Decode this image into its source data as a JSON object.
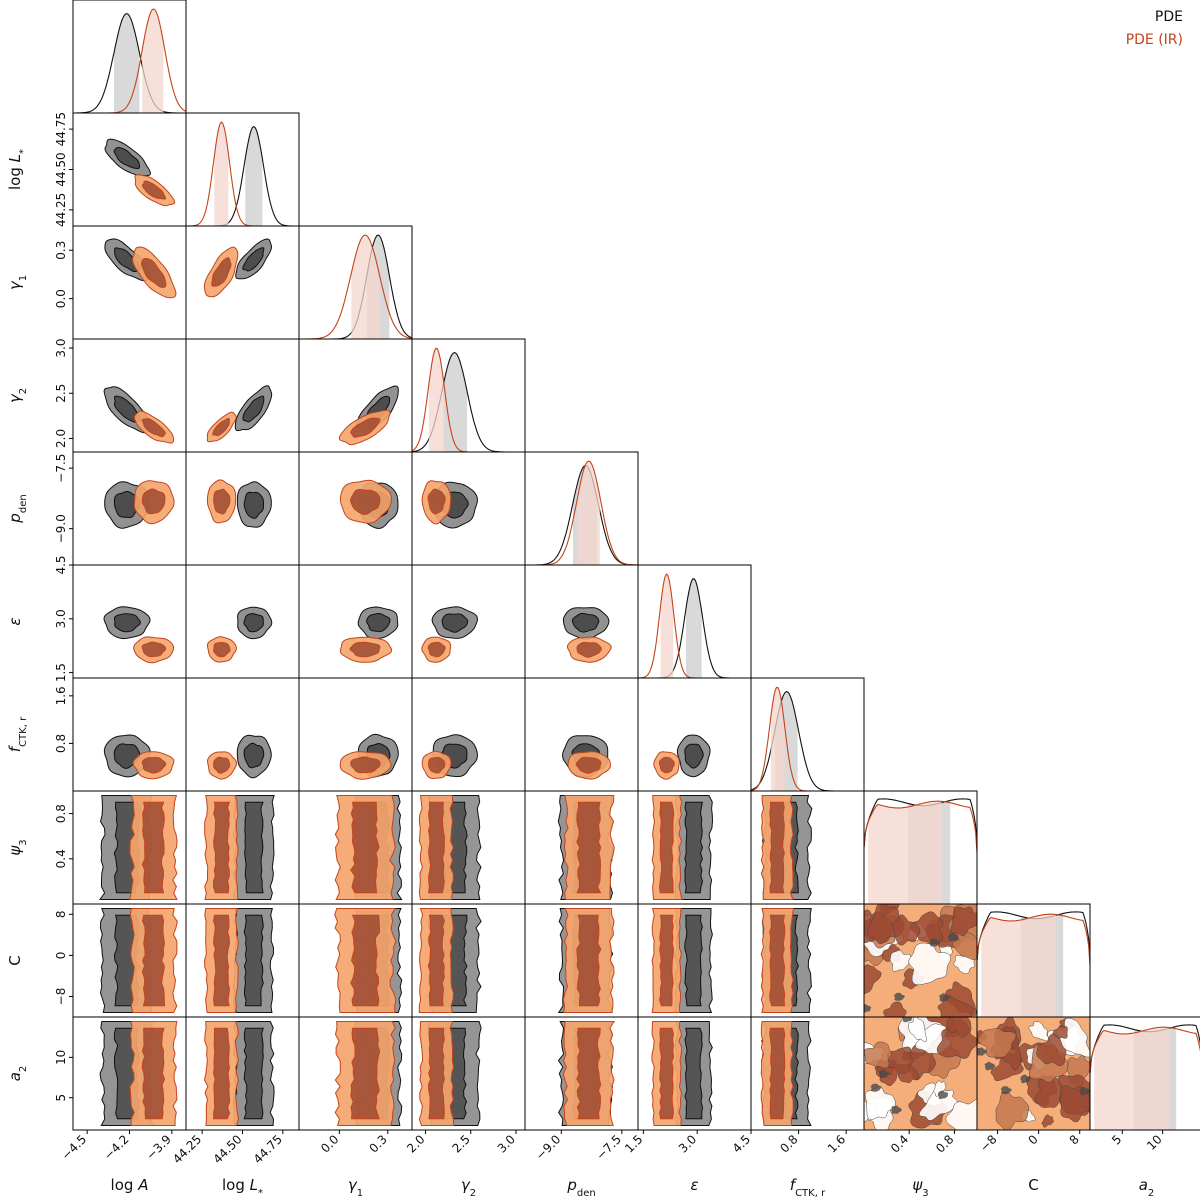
{
  "legend": [
    {
      "label": "PDE",
      "color": "#111111"
    },
    {
      "label": "PDE (IR)",
      "color": "#c4441b"
    }
  ],
  "chart_data": {
    "type": "corner",
    "legend_position": "top-right",
    "colors": {
      "PDE_line": "#111111",
      "PDE_fill_outer": "#8c8c8c",
      "PDE_fill_inner": "#4a4a4a",
      "PDE_hist_band": "#d9d9d9",
      "IR_line": "#c4441b",
      "IR_fill_outer": "#f4a56c",
      "IR_fill_inner": "#9c4a32",
      "IR_hist_band": "#f3d5cc"
    },
    "parameters": [
      {
        "key": "logA",
        "label": "log A",
        "range": [
          -4.6,
          -3.8
        ],
        "ticks": [
          -4.5,
          -4.2,
          -3.9
        ],
        "tick_labels": [
          "−4.5",
          "−4.2",
          "−3.9"
        ],
        "mean_pde": -4.22,
        "sd_pde": 0.09,
        "mean_ir": -4.03,
        "sd_ir": 0.08
      },
      {
        "key": "logLstar",
        "label": "log L*",
        "range": [
          44.15,
          44.85
        ],
        "ticks": [
          44.25,
          44.5,
          44.75
        ],
        "tick_labels": [
          "44.25",
          "44.50",
          "44.75"
        ],
        "mean_pde": 44.57,
        "sd_pde": 0.06,
        "mean_ir": 44.37,
        "sd_ir": 0.05
      },
      {
        "key": "gamma1",
        "label": "γ1",
        "range": [
          -0.25,
          0.45
        ],
        "ticks": [
          0.0,
          0.3
        ],
        "tick_labels": [
          "0.0",
          "0.3"
        ],
        "mean_pde": 0.24,
        "sd_pde": 0.07,
        "mean_ir": 0.16,
        "sd_ir": 0.09
      },
      {
        "key": "gamma2",
        "label": "γ2",
        "range": [
          1.85,
          3.1
        ],
        "ticks": [
          2.0,
          2.5,
          3.0
        ],
        "tick_labels": [
          "2.0",
          "2.5",
          "3.0"
        ],
        "mean_pde": 2.32,
        "sd_pde": 0.14,
        "mean_ir": 2.12,
        "sd_ir": 0.09
      },
      {
        "key": "pden",
        "label": "p_den",
        "range": [
          -9.9,
          -7.1
        ],
        "ticks": [
          -9.0,
          -7.5
        ],
        "tick_labels": [
          "−9.0",
          "−7.5"
        ],
        "mean_pde": -8.4,
        "sd_pde": 0.32,
        "mean_ir": -8.32,
        "sd_ir": 0.3
      },
      {
        "key": "epsilon",
        "label": "ε",
        "range": [
          1.35,
          4.5
        ],
        "ticks": [
          1.5,
          3.0,
          4.5
        ],
        "tick_labels": [
          "1.5",
          "3.0",
          "4.5"
        ],
        "mean_pde": 2.9,
        "sd_pde": 0.25,
        "mean_ir": 2.15,
        "sd_ir": 0.2
      },
      {
        "key": "fCTK",
        "label": "f_CTK, r",
        "range": [
          0.0,
          1.9
        ],
        "ticks": [
          0.8,
          1.6
        ],
        "tick_labels": [
          "0.8",
          "1.6"
        ],
        "mean_pde": 0.6,
        "sd_pde": 0.2,
        "mean_ir": 0.44,
        "sd_ir": 0.13
      },
      {
        "key": "psi3",
        "label": "ψ3",
        "range": [
          0.0,
          1.0
        ],
        "ticks": [
          0.4,
          0.8
        ],
        "tick_labels": [
          "0.4",
          "0.8"
        ]
      },
      {
        "key": "C",
        "label": "C",
        "range": [
          -12,
          10
        ],
        "ticks": [
          -8,
          0,
          8
        ],
        "tick_labels": [
          "−8",
          "0",
          "8"
        ]
      },
      {
        "key": "a2",
        "label": "a2",
        "range": [
          1,
          15
        ],
        "ticks": [
          5,
          10
        ],
        "tick_labels": [
          "5",
          "10"
        ]
      }
    ],
    "uniform_parameters": [
      "psi3",
      "C",
      "a2"
    ],
    "one_d": "marginal posterior density with shaded 68% credible interval per model",
    "two_d": "68% and 95% credible contours per model"
  }
}
